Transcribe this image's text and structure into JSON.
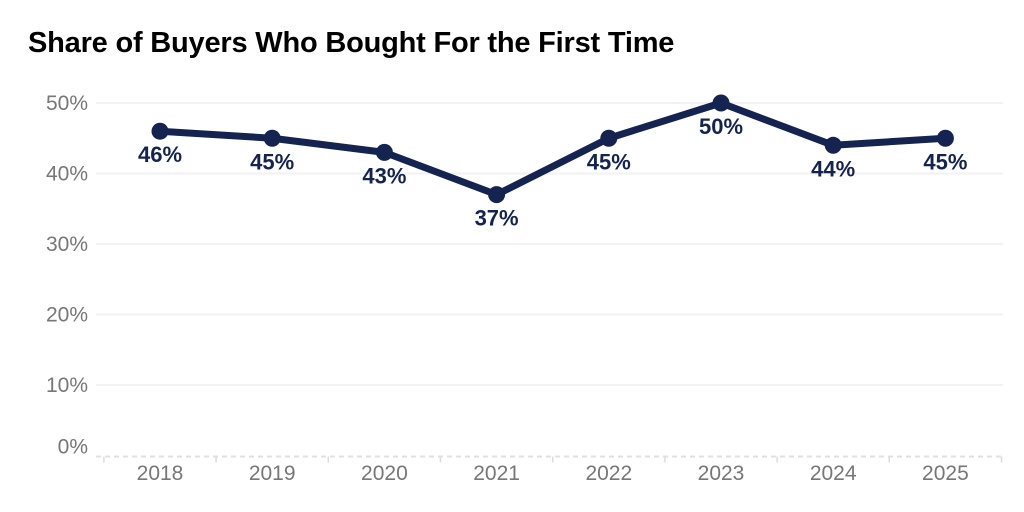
{
  "chart_data": {
    "type": "line",
    "title": "Share of Buyers Who Bought For the First Time",
    "categories": [
      "2018",
      "2019",
      "2020",
      "2021",
      "2022",
      "2023",
      "2024",
      "2025"
    ],
    "values": [
      46,
      45,
      43,
      37,
      45,
      50,
      44,
      45
    ],
    "data_labels": [
      "46%",
      "45%",
      "43%",
      "37%",
      "45%",
      "50%",
      "44%",
      "45%"
    ],
    "yticks": [
      0,
      10,
      20,
      30,
      40,
      50
    ],
    "ytick_labels": [
      "0%",
      "10%",
      "20%",
      "30%",
      "40%",
      "50%"
    ],
    "ylim": [
      0,
      50
    ],
    "xlabel": "",
    "ylabel": "",
    "legend": "none",
    "grid": "horizontal-gridlines, dashed zero baseline, small ticks at category boundaries",
    "colors": {
      "line": "#14234F",
      "point": "#14234F",
      "data_label": "#14234F",
      "axis_label": "#777777",
      "gridline": "#F2F2F2",
      "baseline": "#E0E0E0",
      "tick": "#DCDCDC",
      "title": "#000000",
      "background": "#FFFFFF"
    }
  }
}
